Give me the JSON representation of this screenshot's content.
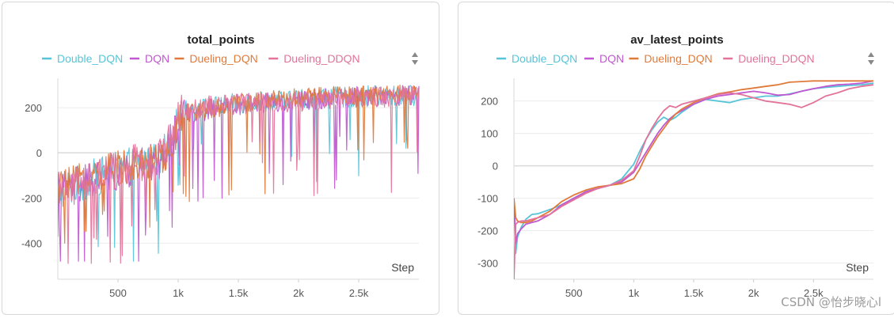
{
  "watermark": "CSDN @怡步晓心l",
  "colors": {
    "Double_DQN": "#57c4d8",
    "DQN": "#c058d0",
    "Dueling_DQN": "#e07a3a",
    "Dueling_DDQN": "#e2739a"
  },
  "chart_data": [
    {
      "type": "line",
      "title": "total_points",
      "xlabel": "Step",
      "ylabel": "",
      "xlim": [
        0,
        3000
      ],
      "ylim": [
        -560,
        330
      ],
      "x_ticks": [
        500,
        1000,
        1500,
        2000,
        2500
      ],
      "x_tick_labels": [
        "500",
        "1k",
        "1.5k",
        "2k",
        "2.5k"
      ],
      "y_ticks": [
        -400,
        -200,
        0,
        200
      ],
      "y_tick_labels": [
        "-400",
        "-200",
        "0",
        "200"
      ],
      "grid": true,
      "legend_position": "top",
      "series": [
        {
          "name": "Double_DQN",
          "trend_x": [
            0,
            300,
            600,
            850,
            950,
            1050,
            1500,
            2000,
            2500,
            3000
          ],
          "trend_y": [
            -180,
            -120,
            -70,
            -30,
            60,
            180,
            215,
            235,
            245,
            250
          ],
          "noise": 170,
          "min": -550,
          "max": 305
        },
        {
          "name": "DQN",
          "trend_x": [
            0,
            300,
            600,
            850,
            950,
            1050,
            1500,
            2000,
            2500,
            3000
          ],
          "trend_y": [
            -175,
            -130,
            -80,
            -40,
            50,
            170,
            210,
            230,
            245,
            250
          ],
          "noise": 170,
          "min": -480,
          "max": 305
        },
        {
          "name": "Dueling_DQN",
          "trend_x": [
            0,
            300,
            600,
            850,
            950,
            1050,
            1500,
            2000,
            2500,
            3000
          ],
          "trend_y": [
            -170,
            -110,
            -60,
            -40,
            40,
            170,
            215,
            240,
            250,
            255
          ],
          "noise": 160,
          "min": -400,
          "max": 310
        },
        {
          "name": "Dueling_DDQN",
          "trend_x": [
            0,
            300,
            600,
            850,
            950,
            1050,
            1500,
            2000,
            2500,
            3000
          ],
          "trend_y": [
            -180,
            -120,
            -60,
            -20,
            70,
            190,
            215,
            220,
            240,
            250
          ],
          "noise": 170,
          "min": -490,
          "max": 305
        }
      ]
    },
    {
      "type": "line",
      "title": "av_latest_points",
      "xlabel": "Step",
      "ylabel": "",
      "xlim": [
        0,
        3000
      ],
      "ylim": [
        -350,
        270
      ],
      "x_ticks": [
        500,
        1000,
        1500,
        2000,
        2500
      ],
      "x_tick_labels": [
        "500",
        "1k",
        "1.5k",
        "2k",
        "2.5k"
      ],
      "y_ticks": [
        -300,
        -200,
        -100,
        0,
        100,
        200
      ],
      "y_tick_labels": [
        "-300",
        "-200",
        "-100",
        "0",
        "100",
        "200"
      ],
      "grid": true,
      "legend_position": "top",
      "series": [
        {
          "name": "Double_DQN",
          "x": [
            0,
            15,
            30,
            60,
            100,
            150,
            200,
            300,
            400,
            500,
            600,
            700,
            800,
            900,
            1000,
            1050,
            1100,
            1150,
            1200,
            1250,
            1300,
            1350,
            1400,
            1500,
            1600,
            1700,
            1800,
            1900,
            2000,
            2100,
            2200,
            2300,
            2400,
            2500,
            2600,
            2700,
            2800,
            2900,
            3000
          ],
          "y": [
            -100,
            -270,
            -220,
            -190,
            -165,
            -150,
            -148,
            -135,
            -120,
            -100,
            -80,
            -70,
            -60,
            -40,
            5,
            45,
            80,
            110,
            135,
            150,
            140,
            150,
            165,
            190,
            205,
            200,
            195,
            205,
            210,
            215,
            215,
            222,
            230,
            238,
            242,
            245,
            248,
            250,
            255
          ]
        },
        {
          "name": "DQN",
          "x": [
            0,
            15,
            30,
            60,
            100,
            150,
            200,
            300,
            400,
            500,
            600,
            700,
            800,
            900,
            1000,
            1050,
            1100,
            1150,
            1200,
            1250,
            1300,
            1350,
            1400,
            1500,
            1600,
            1700,
            1800,
            1900,
            2000,
            2100,
            2200,
            2300,
            2400,
            2500,
            2600,
            2700,
            2800,
            2900,
            3000
          ],
          "y": [
            -100,
            -240,
            -210,
            -195,
            -180,
            -175,
            -170,
            -150,
            -120,
            -100,
            -80,
            -70,
            -60,
            -50,
            -20,
            10,
            40,
            70,
            100,
            125,
            145,
            160,
            170,
            190,
            205,
            215,
            220,
            225,
            230,
            225,
            218,
            220,
            230,
            238,
            245,
            250,
            252,
            255,
            262
          ]
        },
        {
          "name": "Dueling_DQN",
          "x": [
            0,
            15,
            30,
            60,
            100,
            150,
            200,
            300,
            400,
            500,
            600,
            700,
            800,
            900,
            1000,
            1050,
            1100,
            1150,
            1200,
            1250,
            1300,
            1350,
            1400,
            1500,
            1600,
            1700,
            1800,
            1900,
            2000,
            2100,
            2200,
            2300,
            2400,
            2500,
            2600,
            2700,
            2800,
            2900,
            3000
          ],
          "y": [
            -100,
            -160,
            -170,
            -175,
            -175,
            -170,
            -160,
            -140,
            -110,
            -90,
            -75,
            -65,
            -60,
            -55,
            -40,
            -10,
            30,
            60,
            90,
            115,
            140,
            160,
            175,
            195,
            210,
            222,
            228,
            235,
            240,
            245,
            250,
            258,
            260,
            262,
            262,
            262,
            262,
            262,
            262
          ]
        },
        {
          "name": "Dueling_DDQN",
          "x": [
            0,
            15,
            30,
            60,
            100,
            150,
            200,
            300,
            400,
            500,
            600,
            700,
            800,
            900,
            1000,
            1050,
            1100,
            1150,
            1200,
            1250,
            1300,
            1350,
            1400,
            1500,
            1600,
            1700,
            1800,
            1900,
            2000,
            2100,
            2200,
            2300,
            2400,
            2500,
            2600,
            2700,
            2800,
            2900,
            3000
          ],
          "y": [
            -350,
            -180,
            -175,
            -170,
            -170,
            -165,
            -160,
            -150,
            -125,
            -105,
            -85,
            -70,
            -60,
            -45,
            -15,
            30,
            80,
            115,
            145,
            170,
            185,
            180,
            190,
            200,
            210,
            220,
            225,
            220,
            210,
            200,
            195,
            190,
            180,
            195,
            215,
            225,
            238,
            245,
            250
          ]
        }
      ]
    }
  ]
}
